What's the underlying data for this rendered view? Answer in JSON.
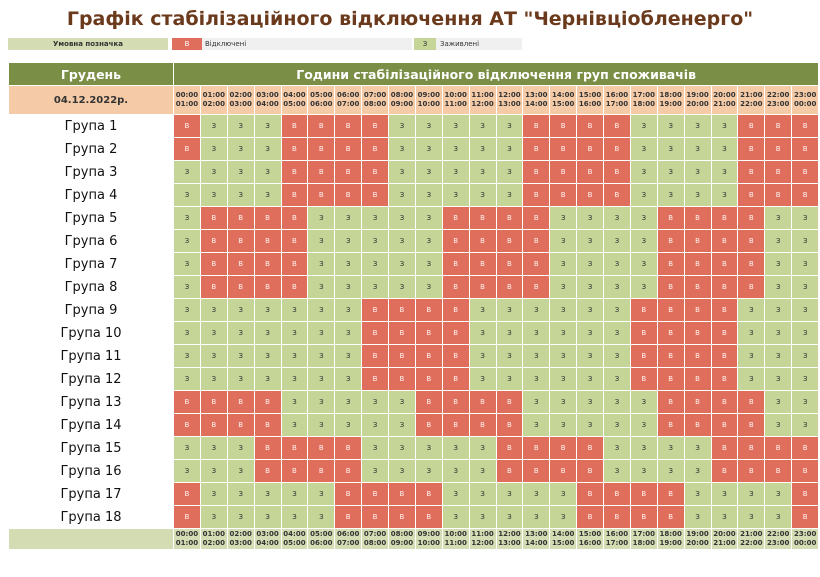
{
  "title": "Графік стабілізаційного відключення АТ \"Чернівціобленерго\"",
  "legend": {
    "label": "Умовна позначка",
    "off_code": "В",
    "off_text": "Відключені",
    "on_code": "З",
    "on_text": "Заживлені"
  },
  "header": {
    "month": "Грудень",
    "hours_title": "Години стабілізаційного відключення груп споживачів",
    "date": "04.12.2022р."
  },
  "time_slots": [
    [
      "00:00",
      "01:00"
    ],
    [
      "01:00",
      "02:00"
    ],
    [
      "02:00",
      "03:00"
    ],
    [
      "03:00",
      "04:00"
    ],
    [
      "04:00",
      "05:00"
    ],
    [
      "05:00",
      "06:00"
    ],
    [
      "06:00",
      "07:00"
    ],
    [
      "07:00",
      "08:00"
    ],
    [
      "08:00",
      "09:00"
    ],
    [
      "09:00",
      "10:00"
    ],
    [
      "10:00",
      "11:00"
    ],
    [
      "11:00",
      "12:00"
    ],
    [
      "12:00",
      "13:00"
    ],
    [
      "13:00",
      "14:00"
    ],
    [
      "14:00",
      "15:00"
    ],
    [
      "15:00",
      "16:00"
    ],
    [
      "16:00",
      "17:00"
    ],
    [
      "17:00",
      "18:00"
    ],
    [
      "18:00",
      "19:00"
    ],
    [
      "19:00",
      "20:00"
    ],
    [
      "20:00",
      "21:00"
    ],
    [
      "21:00",
      "22:00"
    ],
    [
      "22:00",
      "23:00"
    ],
    [
      "23:00",
      "00:00"
    ]
  ],
  "groups": [
    {
      "name": "Група 1",
      "slots": "ВЗЗЗВВВВЗЗЗЗЗВВВВЗЗЗЗВВВ"
    },
    {
      "name": "Група 2",
      "slots": "ВЗЗЗВВВВЗЗЗЗЗВВВВЗЗЗЗВВВ"
    },
    {
      "name": "Група 3",
      "slots": "ЗЗЗЗВВВВЗЗЗЗЗВВВВЗЗЗЗВВВ"
    },
    {
      "name": "Група 4",
      "slots": "ЗЗЗЗВВВВЗЗЗЗЗВВВВЗЗЗЗВВВ"
    },
    {
      "name": "Група 5",
      "slots": "ЗВВВВЗЗЗЗЗВВВВЗЗЗЗВВВВЗЗ"
    },
    {
      "name": "Група 6",
      "slots": "ЗВВВВЗЗЗЗЗВВВВЗЗЗЗВВВВЗЗ"
    },
    {
      "name": "Група 7",
      "slots": "ЗВВВВЗЗЗЗЗВВВВЗЗЗЗВВВВЗЗ"
    },
    {
      "name": "Група 8",
      "slots": "ЗВВВВЗЗЗЗЗВВВВЗЗЗЗВВВВЗЗ"
    },
    {
      "name": "Група 9",
      "slots": "ЗЗЗЗЗЗЗВВВВЗЗЗЗЗЗВВВВЗЗЗ"
    },
    {
      "name": "Група 10",
      "slots": "ЗЗЗЗЗЗЗВВВВЗЗЗЗЗЗВВВВЗЗЗ"
    },
    {
      "name": "Група 11",
      "slots": "ЗЗЗЗЗЗЗВВВВЗЗЗЗЗЗВВВВЗЗЗ"
    },
    {
      "name": "Група 12",
      "slots": "ЗЗЗЗЗЗЗВВВВЗЗЗЗЗЗВВВВЗЗЗ"
    },
    {
      "name": "Група 13",
      "slots": "ВВВВЗЗЗЗЗВВВВЗЗЗЗЗВВВВЗЗ"
    },
    {
      "name": "Група 14",
      "slots": "ВВВВЗЗЗЗЗВВВВЗЗЗЗЗВВВВЗЗ"
    },
    {
      "name": "Група 15",
      "slots": "ЗЗЗВВВВЗЗЗЗЗВВВВЗЗЗЗВВВВ"
    },
    {
      "name": "Група 16",
      "slots": "ЗЗЗВВВВЗЗЗЗЗВВВВЗЗЗЗВВВВ"
    },
    {
      "name": "Група 17",
      "slots": "ВЗЗЗЗЗВВВВЗЗЗЗЗВВВВЗЗЗЗВ"
    },
    {
      "name": "Група 18",
      "slots": "ВЗЗЗЗЗВВВВЗЗЗЗЗВВВВЗЗЗЗВ"
    }
  ],
  "colors": {
    "off": "#e06e5d",
    "on": "#c5d497",
    "header": "#7a8e45",
    "time_bg": "#f5cba7",
    "title": "#6b3a1c"
  }
}
